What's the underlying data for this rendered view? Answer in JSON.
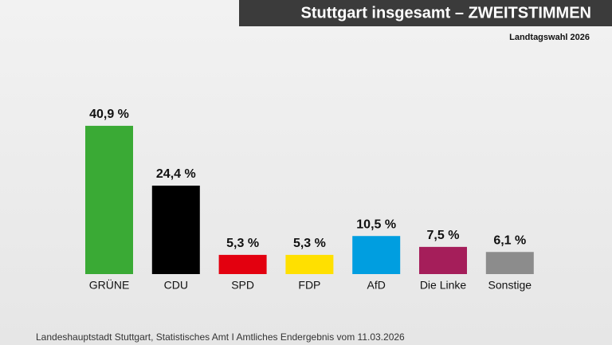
{
  "chart_data": {
    "type": "bar",
    "title": "Stuttgart insgesamt – ZWEITSTIMMEN",
    "subtitle": "Landtagswahl 2026",
    "source": "Landeshauptstadt Stuttgart, Statistisches Amt I Amtliches Endergebnis vom 11.03.2026",
    "categories": [
      "GRÜNE",
      "CDU",
      "SPD",
      "FDP",
      "AfD",
      "Die Linke",
      "Sonstige"
    ],
    "values": [
      40.9,
      24.4,
      5.3,
      5.3,
      10.5,
      7.5,
      6.1
    ],
    "value_labels": [
      "40,9 %",
      "24,4 %",
      "5,3 %",
      "5,3 %",
      "10,5 %",
      "7,5 %",
      "6,1 %"
    ],
    "colors": [
      "#3aaa35",
      "#000000",
      "#e3000f",
      "#ffe000",
      "#009ee0",
      "#a51e5a",
      "#8c8c8c"
    ]
  }
}
